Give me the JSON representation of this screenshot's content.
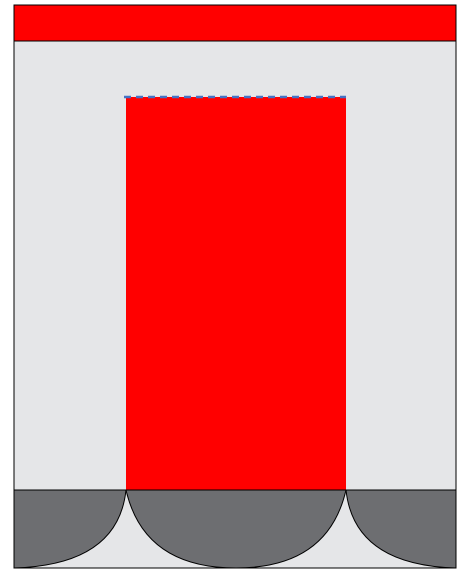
{
  "colors": {
    "page_background": "#ffffff",
    "frame_fill": "#e5e6e8",
    "header_band": "#ff0000",
    "center_block": "#ff0000",
    "bottom_lobes": "#6d6e71",
    "outline": "#000000",
    "dashed_line": "#4472c4"
  },
  "elements": {
    "header_band": {
      "shape": "rectangle"
    },
    "center_block": {
      "shape": "rectangle"
    },
    "top_dashed_line": {
      "style": "dashed"
    },
    "bottom_lobes": {
      "shape": "scalloped",
      "count": 3
    }
  }
}
